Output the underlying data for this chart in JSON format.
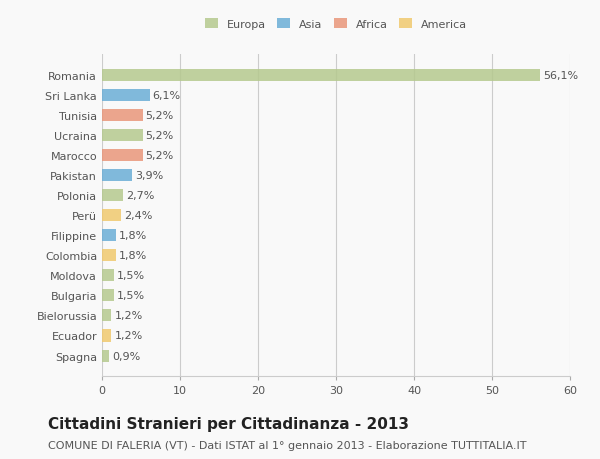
{
  "countries": [
    "Romania",
    "Sri Lanka",
    "Tunisia",
    "Ucraina",
    "Marocco",
    "Pakistan",
    "Polonia",
    "Perü",
    "Filippine",
    "Colombia",
    "Moldova",
    "Bulgaria",
    "Bielorussia",
    "Ecuador",
    "Spagna"
  ],
  "values": [
    56.1,
    6.1,
    5.2,
    5.2,
    5.2,
    3.9,
    2.7,
    2.4,
    1.8,
    1.8,
    1.5,
    1.5,
    1.2,
    1.2,
    0.9
  ],
  "continents": [
    "Europa",
    "Asia",
    "Africa",
    "Europa",
    "Africa",
    "Asia",
    "Europa",
    "America",
    "Asia",
    "America",
    "Europa",
    "Europa",
    "Europa",
    "America",
    "Europa"
  ],
  "continent_colors": {
    "Europa": "#b5c98e",
    "Asia": "#6baed6",
    "Africa": "#e9967a",
    "America": "#f0c96e"
  },
  "legend_order": [
    "Europa",
    "Asia",
    "Africa",
    "America"
  ],
  "legend_colors": {
    "Europa": "#b5c98e",
    "Asia": "#6baed6",
    "Africa": "#e9967a",
    "America": "#f0c96e"
  },
  "xlim": [
    0,
    60
  ],
  "xticks": [
    0,
    10,
    20,
    30,
    40,
    50,
    60
  ],
  "title": "Cittadini Stranieri per Cittadinanza - 2013",
  "subtitle": "COMUNE DI FALERIA (VT) - Dati ISTAT al 1° gennaio 2013 - Elaborazione TUTTITALIA.IT",
  "background_color": "#f9f9f9",
  "grid_color": "#cccccc",
  "bar_height": 0.6,
  "title_fontsize": 11,
  "subtitle_fontsize": 8,
  "label_fontsize": 8,
  "tick_fontsize": 8
}
